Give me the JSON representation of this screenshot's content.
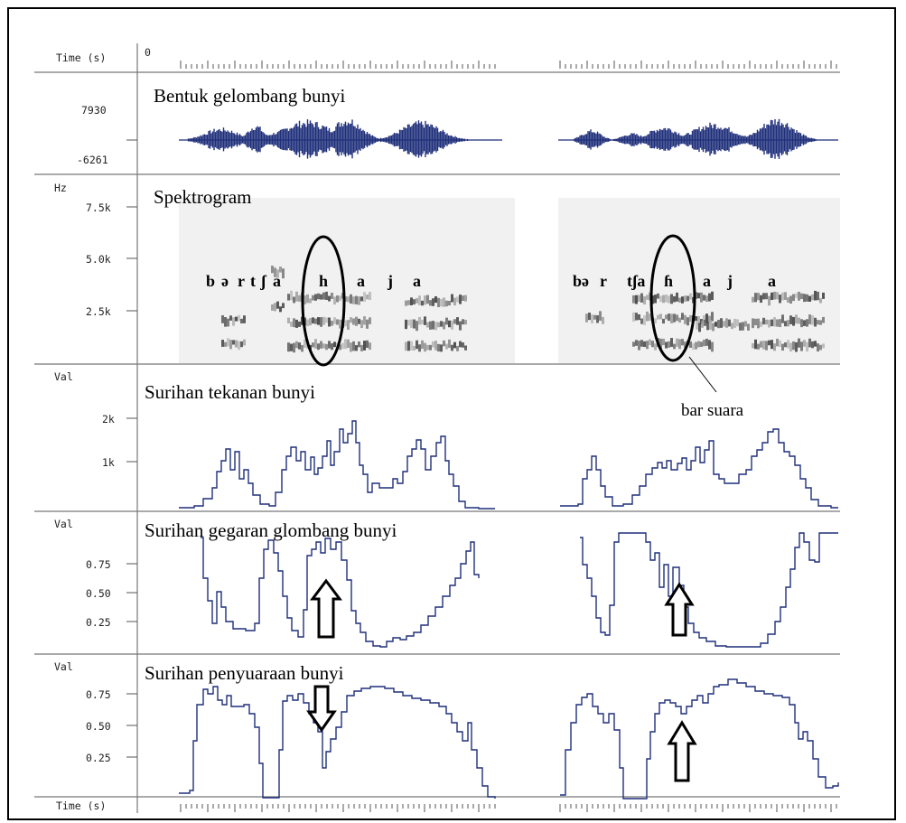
{
  "labels": {
    "time": "Time (s)",
    "time_zero": "0",
    "hz": "Hz",
    "val": "Val"
  },
  "panels": {
    "waveform": {
      "title": "Bentuk gelombang bunyi",
      "ticks": [
        "7930",
        "-6261"
      ]
    },
    "spectrogram": {
      "title": "Spektrogram",
      "ticks": [
        "7.5k",
        "5.0k",
        "2.5k"
      ]
    },
    "pressure": {
      "title": "Surihan tekanan bunyi",
      "ticks": [
        "2k",
        "1k"
      ]
    },
    "vibration": {
      "title": "Surihan gegaran glombang bunyi",
      "ticks": [
        "0.75",
        "0.50",
        "0.25"
      ]
    },
    "voicing": {
      "title": "Surihan penyuaraan bunyi",
      "ticks": [
        "0.75",
        "0.50",
        "0.25"
      ]
    }
  },
  "phonetics": {
    "left": [
      "b",
      "ə",
      "r",
      "t",
      "ʃ",
      "a",
      "h",
      "a",
      "j",
      "a"
    ],
    "right": [
      "bə",
      "r",
      "tʃa",
      "ɦ",
      "a",
      "j",
      "a"
    ]
  },
  "annotation": {
    "bar_suara": "bar suara"
  },
  "colors": {
    "trace": "#1f2f7a",
    "axis": "#555555",
    "spectro_bg": "#f1f1f1"
  }
}
